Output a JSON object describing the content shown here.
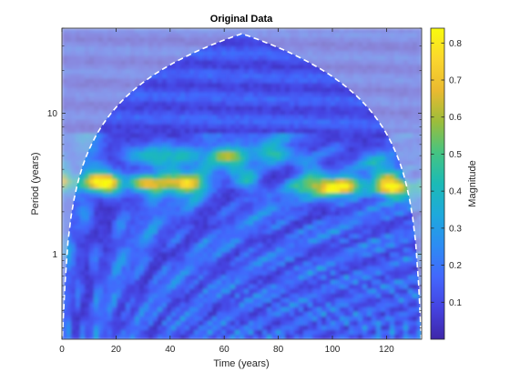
{
  "chart_data": {
    "type": "heatmap",
    "subtype": "wavelet-scalogram",
    "title": "Original Data",
    "xlabel": "Time (years)",
    "ylabel": "Period (years)",
    "colorbar_label": "Magnitude",
    "xlim": [
      0,
      133
    ],
    "ylim": [
      0.25,
      40
    ],
    "yscale": "log",
    "x_ticks": [
      0,
      20,
      40,
      60,
      80,
      100,
      120
    ],
    "x_tick_labels": [
      "0",
      "20",
      "40",
      "60",
      "80",
      "100",
      "120"
    ],
    "y_ticks": [
      1,
      10
    ],
    "y_tick_labels": [
      "1",
      "10"
    ],
    "clim": [
      0,
      0.84
    ],
    "colorbar_ticks": [
      0.1,
      0.2,
      0.3,
      0.4,
      0.5,
      0.6,
      0.7,
      0.8
    ],
    "colorbar_tick_labels": [
      "0.1",
      "0.2",
      "0.3",
      "0.4",
      "0.5",
      "0.6",
      "0.7",
      "0.8"
    ],
    "colormap": "parula",
    "cone_of_influence": true,
    "grid": false,
    "high_magnitude_bands": [
      {
        "period": 3.2,
        "x_range": [
          0,
          45
        ],
        "magnitude": 0.75
      },
      {
        "period": 3.0,
        "x_range": [
          95,
          133
        ],
        "magnitude": 0.8
      },
      {
        "period": 5.0,
        "x_range": [
          30,
          80
        ],
        "magnitude": 0.45
      }
    ]
  }
}
